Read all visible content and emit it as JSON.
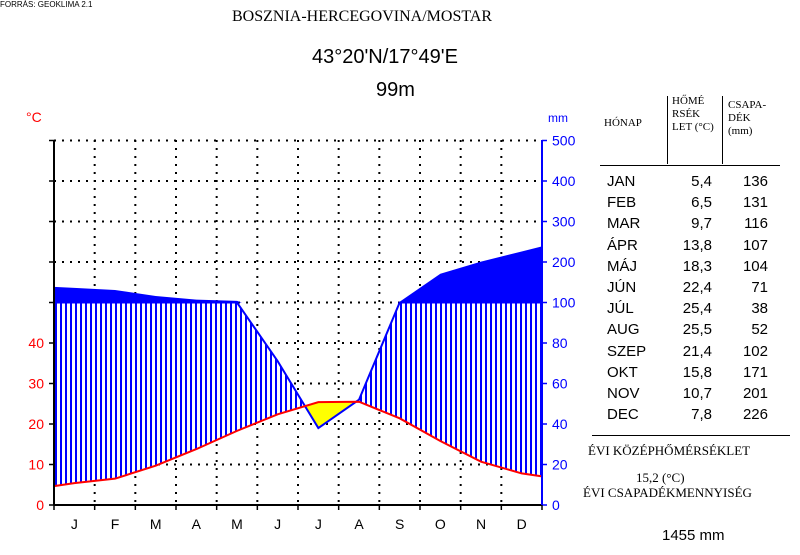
{
  "source": "FORRÁS: GEOKLIMA 2.1",
  "title": "BOSZNIA-HERCEGOVINA/MOSTAR",
  "coordinates": "43°20'N/17°49'E",
  "elevation": "99m",
  "colors": {
    "temperature": "#ff0000",
    "precipitation": "#0000ff",
    "humid_fill": "#0000ff",
    "dry_fill": "#ffff00",
    "grid": "#000000"
  },
  "table": {
    "headers": {
      "month": "HÓNAP",
      "temp": "HŐMÉ RSÉK LET (°C)",
      "precip": "CSAPA- DÉK (mm)"
    },
    "rows": [
      {
        "month": "JAN",
        "temp": "5,4",
        "precip": "136"
      },
      {
        "month": "FEB",
        "temp": "6,5",
        "precip": "131"
      },
      {
        "month": "MAR",
        "temp": "9,7",
        "precip": "116"
      },
      {
        "month": "ÁPR",
        "temp": "13,8",
        "precip": "107"
      },
      {
        "month": "MÁJ",
        "temp": "18,3",
        "precip": "104"
      },
      {
        "month": "JÚN",
        "temp": "22,4",
        "precip": "71"
      },
      {
        "month": "JÚL",
        "temp": "25,4",
        "precip": "38"
      },
      {
        "month": "AUG",
        "temp": "25,5",
        "precip": "52"
      },
      {
        "month": "SZEP",
        "temp": "21,4",
        "precip": "102"
      },
      {
        "month": "OKT",
        "temp": "15,8",
        "precip": "171"
      },
      {
        "month": "NOV",
        "temp": "10,7",
        "precip": "201"
      },
      {
        "month": "DEC",
        "temp": "7,8",
        "precip": "226"
      }
    ]
  },
  "annual": {
    "temp_label": "ÉVI KÖZÉPHŐMÉRSÉKLET",
    "temp_value": "15,2 (°C)",
    "precip_label": "ÉVI CSAPADÉKMENNYISÉG",
    "precip_value": "1455 mm"
  },
  "chart_data": {
    "type": "line",
    "subtype": "walter-lieth climate diagram",
    "categories": [
      "J",
      "F",
      "M",
      "A",
      "M",
      "J",
      "J",
      "A",
      "S",
      "O",
      "N",
      "D"
    ],
    "series": [
      {
        "axis": "left",
        "unit": "°C",
        "values": [
          5.4,
          6.5,
          9.7,
          13.8,
          18.3,
          22.4,
          25.4,
          25.5,
          21.4,
          15.8,
          10.7,
          7.8
        ]
      },
      {
        "axis": "right",
        "unit": "mm",
        "values": [
          136,
          131,
          116,
          107,
          104,
          71,
          38,
          52,
          102,
          171,
          201,
          226
        ]
      }
    ],
    "left_axis": {
      "label": "°C",
      "ticks": [
        0,
        10,
        20,
        30,
        40
      ],
      "range": [
        0,
        40
      ]
    },
    "right_axis": {
      "label": "mm",
      "ticks": [
        0,
        20,
        40,
        60,
        80,
        100,
        200,
        300,
        400,
        500
      ],
      "range": [
        0,
        500
      ],
      "scale_change_at": 100
    },
    "grid": true
  }
}
